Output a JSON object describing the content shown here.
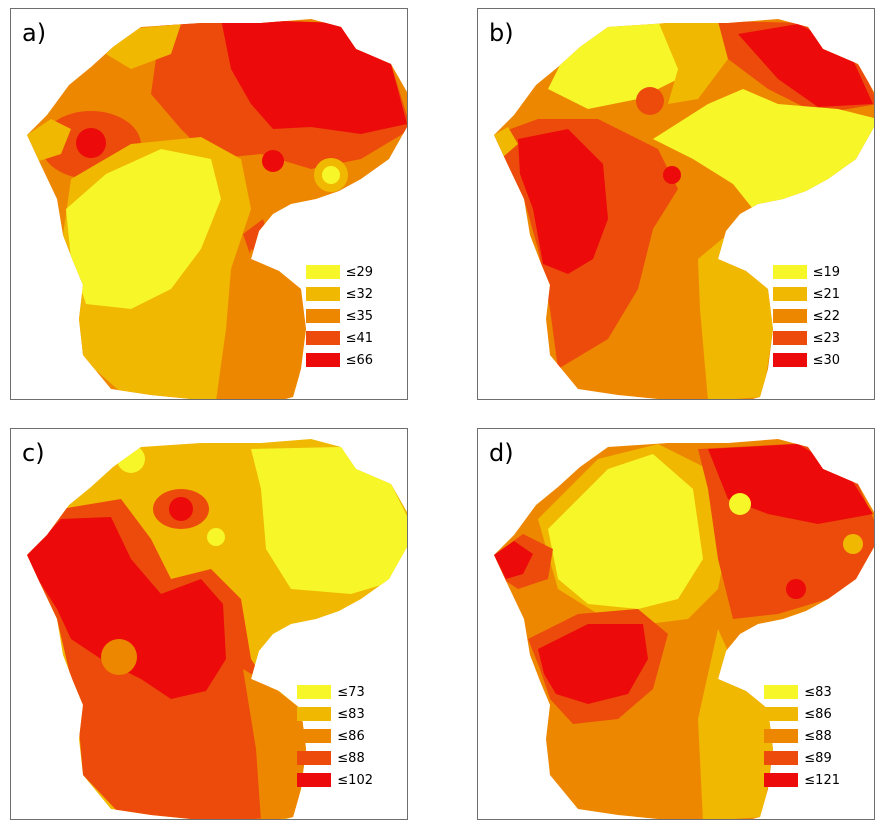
{
  "colors": {
    "class1": "#f6f629",
    "class2": "#f0b800",
    "class3": "#ee8700",
    "class4": "#ec4b0c",
    "class5": "#ec0a0a"
  },
  "panels": [
    {
      "label": "a)",
      "legend": [
        "≤29",
        "≤32",
        "≤35",
        "≤41",
        "≤66"
      ]
    },
    {
      "label": "b)",
      "legend": [
        "≤19",
        "≤21",
        "≤22",
        "≤23",
        "≤30"
      ]
    },
    {
      "label": "c)",
      "legend": [
        "≤73",
        "≤83",
        "≤86",
        "≤88",
        "≤102"
      ]
    },
    {
      "label": "d)",
      "legend": [
        "≤83",
        "≤86",
        "≤88",
        "≤89",
        "≤121"
      ]
    }
  ]
}
